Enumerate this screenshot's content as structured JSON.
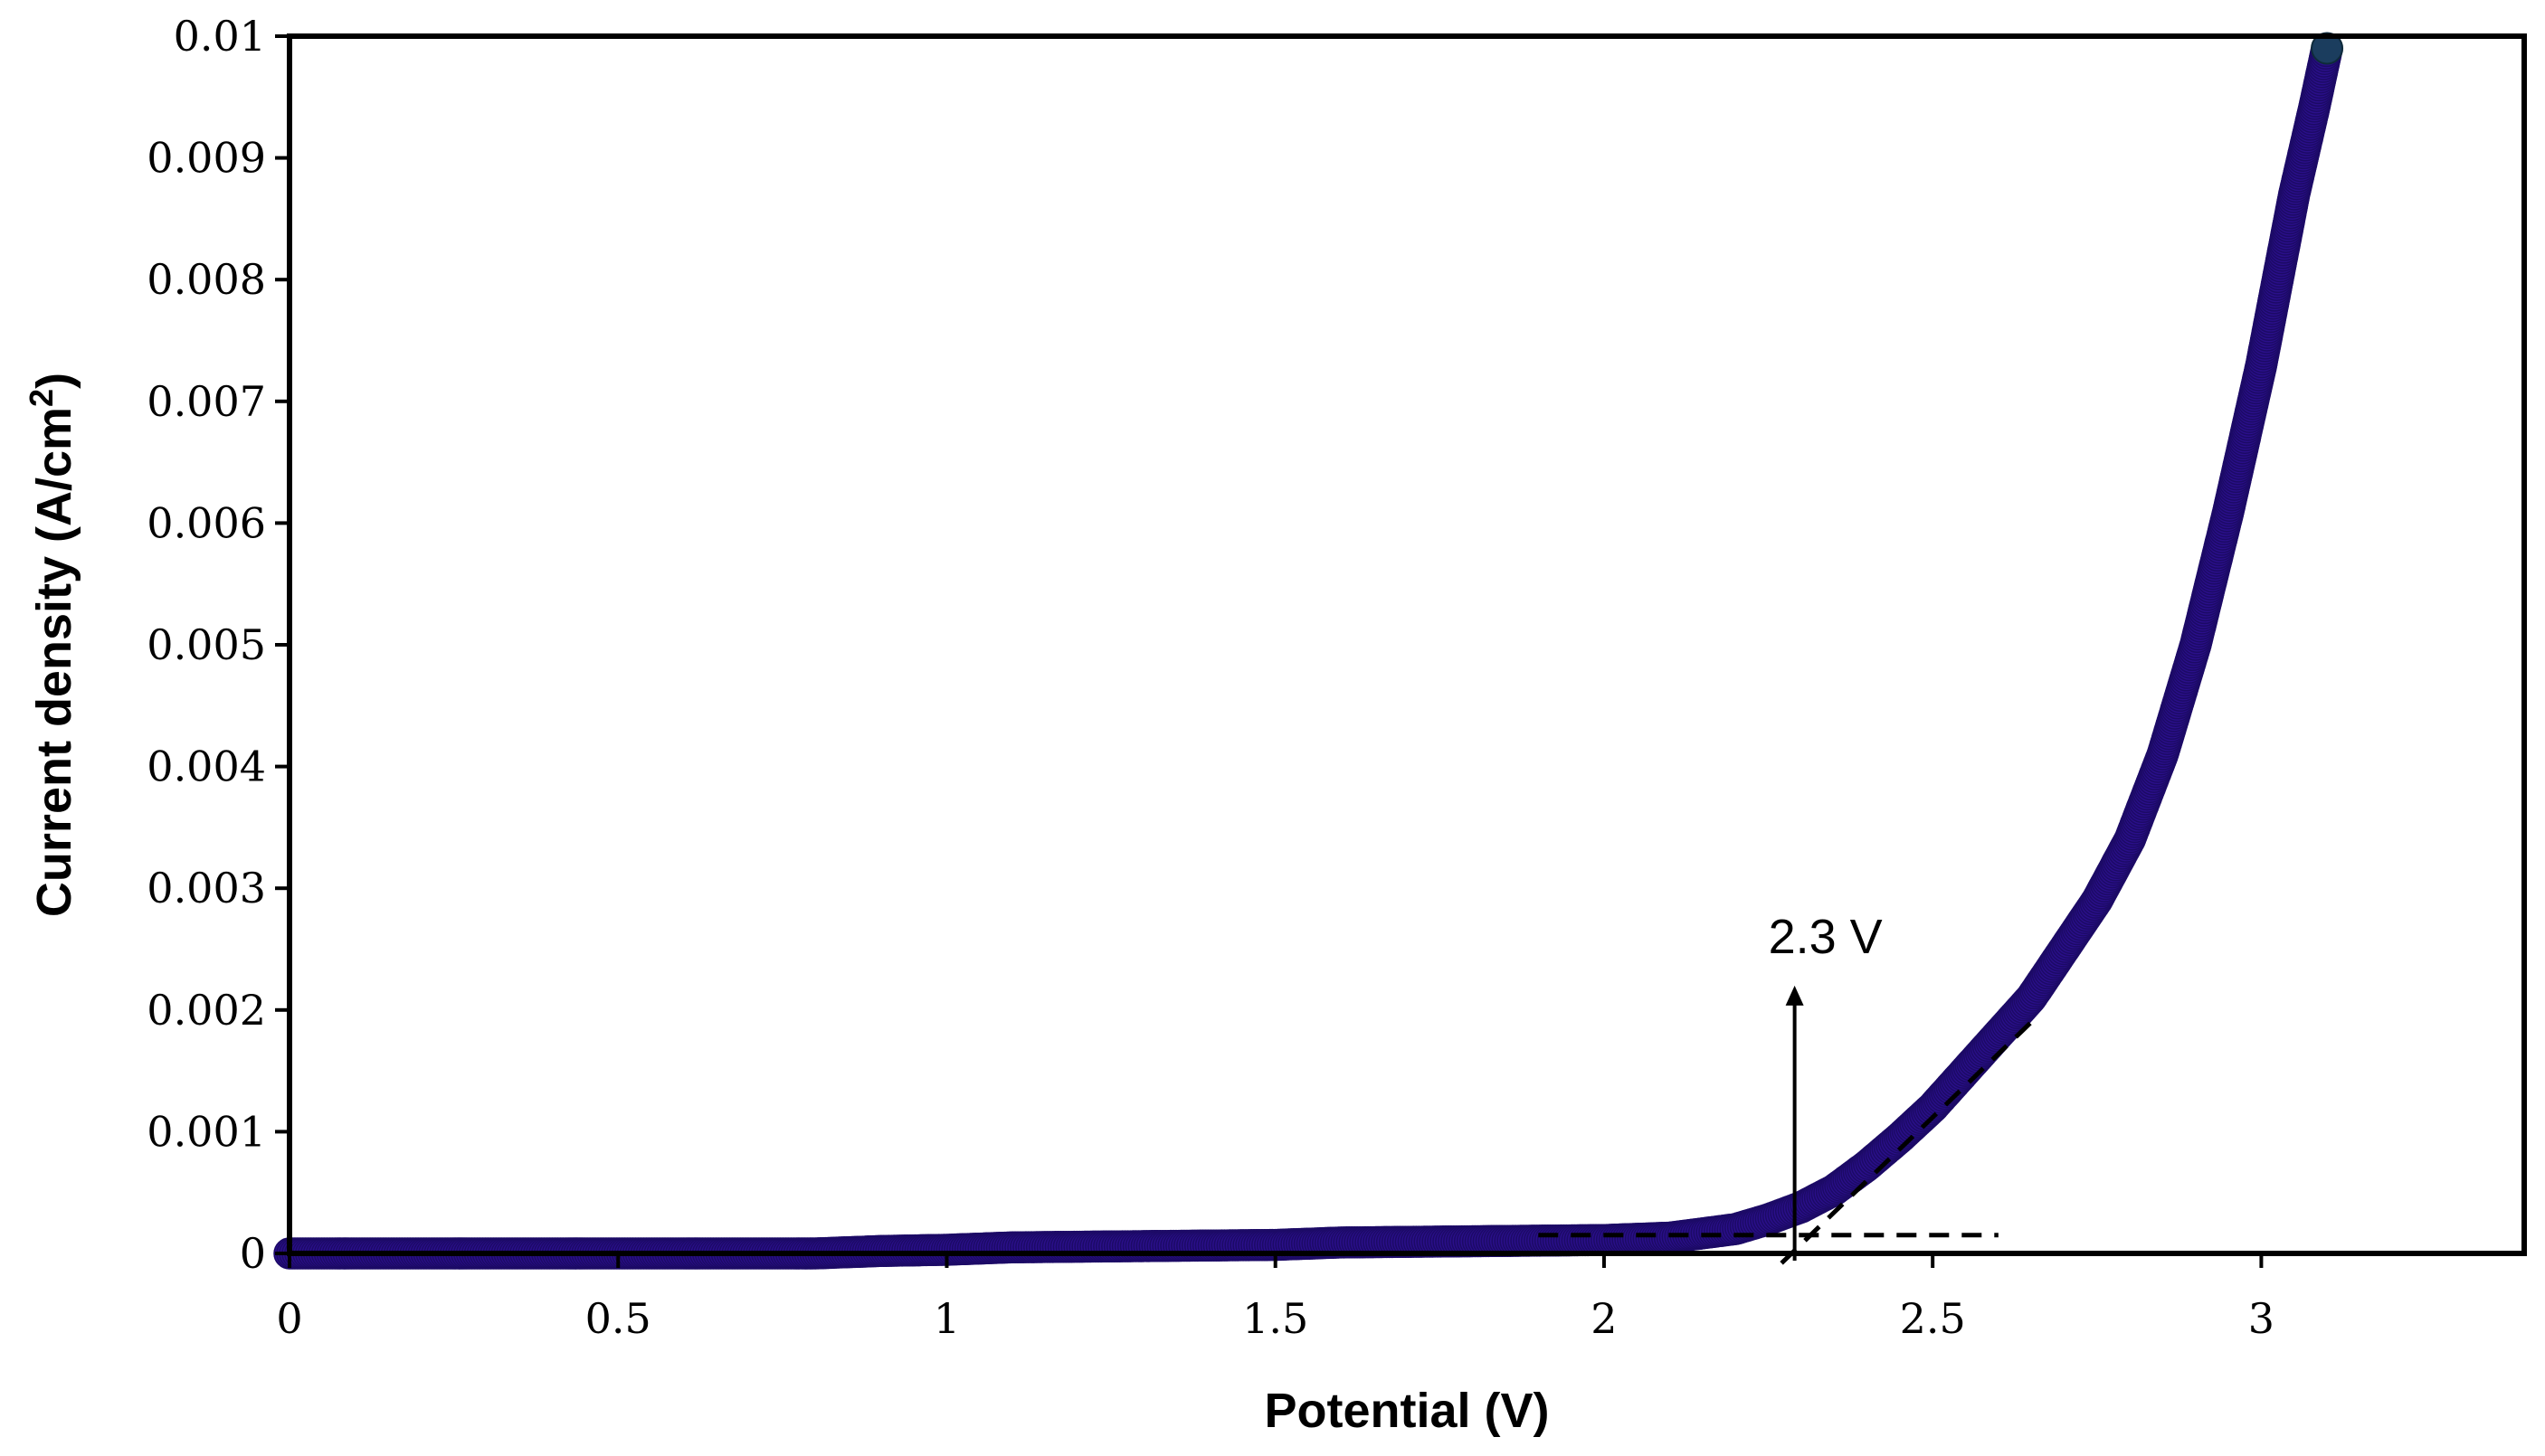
{
  "chart_data": {
    "type": "scatter",
    "title": "",
    "xlabel": "Potential (V)",
    "ylabel": "Current density  (A/cm",
    "ylabel_superscript": "2",
    "ylabel_close": ")",
    "xlim": [
      0,
      3.4
    ],
    "ylim": [
      0,
      0.01
    ],
    "x_ticks": [
      0,
      0.5,
      1,
      1.5,
      2,
      2.5,
      3
    ],
    "x_tick_labels": [
      "0",
      "0.5",
      "1",
      "1.5",
      "2",
      "2.5",
      "3"
    ],
    "y_ticks": [
      0,
      0.001,
      0.002,
      0.003,
      0.004,
      0.005,
      0.006,
      0.007,
      0.008,
      0.009,
      0.01
    ],
    "y_tick_labels": [
      "0",
      "0.001",
      "0.002",
      "0.003",
      "0.004",
      "0.005",
      "0.006",
      "0.007",
      "0.008",
      "0.009",
      "0.01"
    ],
    "grid": false,
    "legend": "none",
    "series": [
      {
        "name": "Current density",
        "color": "#2a0f8a",
        "x": [
          0,
          0.2,
          0.4,
          0.6,
          0.8,
          0.9,
          1.0,
          1.1,
          1.3,
          1.5,
          1.6,
          1.8,
          2.0,
          2.1,
          2.2,
          2.25,
          2.3,
          2.35,
          2.4,
          2.45,
          2.5,
          2.55,
          2.6,
          2.65,
          2.7,
          2.75,
          2.8,
          2.85,
          2.9,
          2.95,
          3.0,
          3.05,
          3.08,
          3.1
        ],
        "y": [
          0,
          0,
          0,
          0,
          0,
          2e-05,
          3e-05,
          5e-05,
          6e-05,
          7e-05,
          9e-05,
          0.0001,
          0.00011,
          0.00013,
          0.0002,
          0.00028,
          0.00038,
          0.00052,
          0.00072,
          0.00095,
          0.0012,
          0.0015,
          0.0018,
          0.0021,
          0.0025,
          0.0029,
          0.0034,
          0.0041,
          0.005,
          0.0061,
          0.0073,
          0.0087,
          0.0094,
          0.0099
        ]
      }
    ],
    "annotations": {
      "onset_label": "2.3 V",
      "onset_x": 2.29,
      "arrow_from_y": 0.0,
      "arrow_to_y": 0.0022,
      "baseline_y": 0.00015,
      "baseline_x_range": [
        1.9,
        2.6
      ],
      "tangent_x_range": [
        2.27,
        2.65
      ],
      "tangent_y_range": [
        -8e-05,
        0.0019
      ]
    }
  }
}
